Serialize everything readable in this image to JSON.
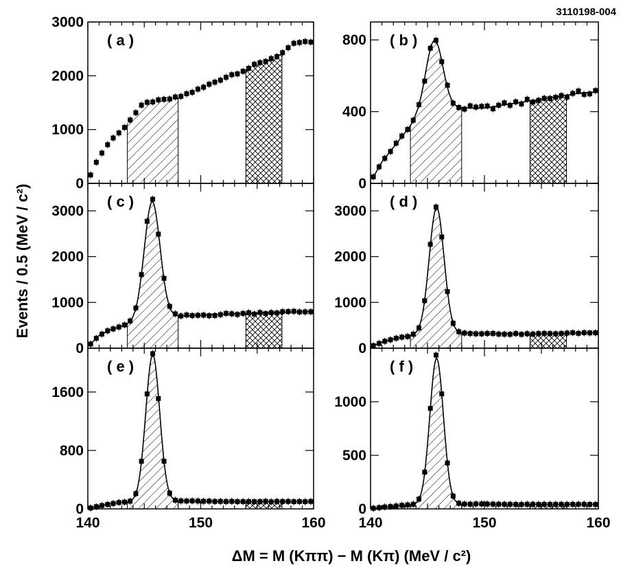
{
  "figure_id": "3110198-004",
  "y_axis_title": "Events / 0.5 (MeV / c²)",
  "x_axis_title": "ΔM = M (Kππ) − M (Kπ) (MeV / c²)",
  "colors": {
    "ink": "#000000",
    "background": "#ffffff"
  },
  "chart_data": [
    {
      "type": "scatter",
      "panel": "a",
      "label": "( a )",
      "xlim": [
        140,
        160
      ],
      "ylim": [
        0,
        3000
      ],
      "xticks": [
        140,
        150,
        160
      ],
      "xtick_labels": [
        "140",
        "150",
        "160"
      ],
      "yticks": [
        0,
        1000,
        2000,
        3000
      ],
      "ytick_labels": [
        "0",
        "1000",
        "2000",
        "3000"
      ],
      "peak": false,
      "anchors": [
        [
          140.2,
          130
        ],
        [
          140.8,
          420
        ],
        [
          142,
          800
        ],
        [
          143,
          980
        ],
        [
          144,
          1250
        ],
        [
          144.8,
          1450
        ],
        [
          145.5,
          1520
        ],
        [
          146.5,
          1540
        ],
        [
          148,
          1600
        ],
        [
          150,
          1760
        ],
        [
          152,
          1960
        ],
        [
          154,
          2120
        ],
        [
          156,
          2300
        ],
        [
          157.5,
          2450
        ],
        [
          158.5,
          2620
        ],
        [
          160,
          2620
        ]
      ],
      "hatch_signal": [
        143.5,
        148.0
      ],
      "hatch_sideband": [
        154.0,
        157.2
      ]
    },
    {
      "type": "scatter",
      "panel": "b",
      "label": "( b )",
      "xlim": [
        140,
        160
      ],
      "ylim": [
        0,
        900
      ],
      "xticks": [
        140,
        150,
        160
      ],
      "xtick_labels": [
        "140",
        "150",
        "160"
      ],
      "yticks": [
        0,
        400,
        800
      ],
      "ytick_labels": [
        "0",
        "400",
        "800"
      ],
      "peak": true,
      "signal": {
        "mean": 145.6,
        "width": 0.75,
        "amp": 395
      },
      "background": [
        [
          140.2,
          30
        ],
        [
          141,
          120
        ],
        [
          142,
          200
        ],
        [
          143,
          280
        ],
        [
          144,
          350
        ],
        [
          145,
          390
        ],
        [
          146,
          410
        ],
        [
          147,
          415
        ],
        [
          148,
          420
        ],
        [
          150,
          420
        ],
        [
          152,
          440
        ],
        [
          154,
          460
        ],
        [
          156,
          480
        ],
        [
          158,
          500
        ],
        [
          160,
          510
        ]
      ],
      "hatch_signal": [
        143.5,
        148.0
      ],
      "hatch_sideband": [
        154.0,
        157.2
      ]
    },
    {
      "type": "scatter",
      "panel": "c",
      "label": "( c )",
      "xlim": [
        140,
        160
      ],
      "ylim": [
        0,
        3600
      ],
      "xticks": [
        140,
        150,
        160
      ],
      "xtick_labels": [
        "140",
        "150",
        "160"
      ],
      "yticks": [
        0,
        1000,
        2000,
        3000
      ],
      "ytick_labels": [
        "0",
        "1000",
        "2000",
        "3000"
      ],
      "peak": true,
      "signal": {
        "mean": 145.7,
        "width": 0.7,
        "amp": 2550
      },
      "background": [
        [
          140.2,
          80
        ],
        [
          141,
          280
        ],
        [
          142,
          400
        ],
        [
          143,
          480
        ],
        [
          144,
          560
        ],
        [
          145,
          620
        ],
        [
          146,
          660
        ],
        [
          148,
          700
        ],
        [
          150,
          720
        ],
        [
          152,
          740
        ],
        [
          154,
          760
        ],
        [
          156,
          780
        ],
        [
          158,
          790
        ],
        [
          160,
          800
        ]
      ],
      "hatch_signal": [
        143.5,
        148.0
      ],
      "hatch_sideband": [
        154.0,
        157.2
      ]
    },
    {
      "type": "scatter",
      "panel": "d",
      "label": "( d )",
      "xlim": [
        140,
        160
      ],
      "ylim": [
        0,
        3600
      ],
      "xticks": [
        140,
        150,
        160
      ],
      "xtick_labels": [
        "140",
        "150",
        "160"
      ],
      "yticks": [
        0,
        1000,
        2000,
        3000
      ],
      "ytick_labels": [
        "0",
        "1000",
        "2000",
        "3000"
      ],
      "peak": true,
      "signal": {
        "mean": 145.8,
        "width": 0.65,
        "amp": 2750
      },
      "background": [
        [
          140.2,
          50
        ],
        [
          141,
          130
        ],
        [
          142,
          200
        ],
        [
          143,
          250
        ],
        [
          144,
          290
        ],
        [
          145,
          310
        ],
        [
          146,
          320
        ],
        [
          148,
          330
        ],
        [
          150,
          320
        ],
        [
          152,
          310
        ],
        [
          154,
          310
        ],
        [
          156,
          320
        ],
        [
          158,
          330
        ],
        [
          160,
          340
        ]
      ],
      "hatch_signal": [
        143.5,
        148.0
      ],
      "hatch_sideband": [
        154.0,
        157.2
      ]
    },
    {
      "type": "scatter",
      "panel": "e",
      "label": "( e )",
      "xlim": [
        140,
        160
      ],
      "ylim": [
        0,
        2200
      ],
      "xticks": [
        140,
        150,
        160
      ],
      "xtick_labels": [
        "140",
        "150",
        "160"
      ],
      "yticks": [
        0,
        800,
        1600
      ],
      "ytick_labels": [
        "0",
        "800",
        "1600"
      ],
      "peak": true,
      "signal": {
        "mean": 145.75,
        "width": 0.62,
        "amp": 2000
      },
      "background": [
        [
          140.2,
          10
        ],
        [
          141,
          40
        ],
        [
          142,
          70
        ],
        [
          143,
          90
        ],
        [
          144,
          100
        ],
        [
          146,
          110
        ],
        [
          148,
          110
        ],
        [
          150,
          105
        ],
        [
          152,
          100
        ],
        [
          154,
          100
        ],
        [
          156,
          100
        ],
        [
          158,
          100
        ],
        [
          160,
          100
        ]
      ],
      "hatch_signal": [
        143.5,
        148.0
      ],
      "hatch_sideband": [
        154.0,
        157.2
      ]
    },
    {
      "type": "scatter",
      "panel": "f",
      "label": "( f )",
      "xlim": [
        140,
        160
      ],
      "ylim": [
        0,
        1500
      ],
      "xticks": [
        140,
        150,
        160
      ],
      "xtick_labels": [
        "140",
        "150",
        "160"
      ],
      "yticks": [
        0,
        500,
        1000
      ],
      "ytick_labels": [
        "0",
        "500",
        "1000"
      ],
      "peak": true,
      "signal": {
        "mean": 145.8,
        "width": 0.6,
        "amp": 1360
      },
      "background": [
        [
          140.2,
          5
        ],
        [
          141,
          15
        ],
        [
          142,
          25
        ],
        [
          143,
          35
        ],
        [
          144,
          40
        ],
        [
          146,
          45
        ],
        [
          148,
          45
        ],
        [
          150,
          45
        ],
        [
          152,
          42
        ],
        [
          154,
          42
        ],
        [
          156,
          42
        ],
        [
          158,
          42
        ],
        [
          160,
          42
        ]
      ],
      "hatch_signal": [
        143.5,
        148.0
      ],
      "hatch_sideband": [
        154.0,
        157.2
      ]
    }
  ]
}
